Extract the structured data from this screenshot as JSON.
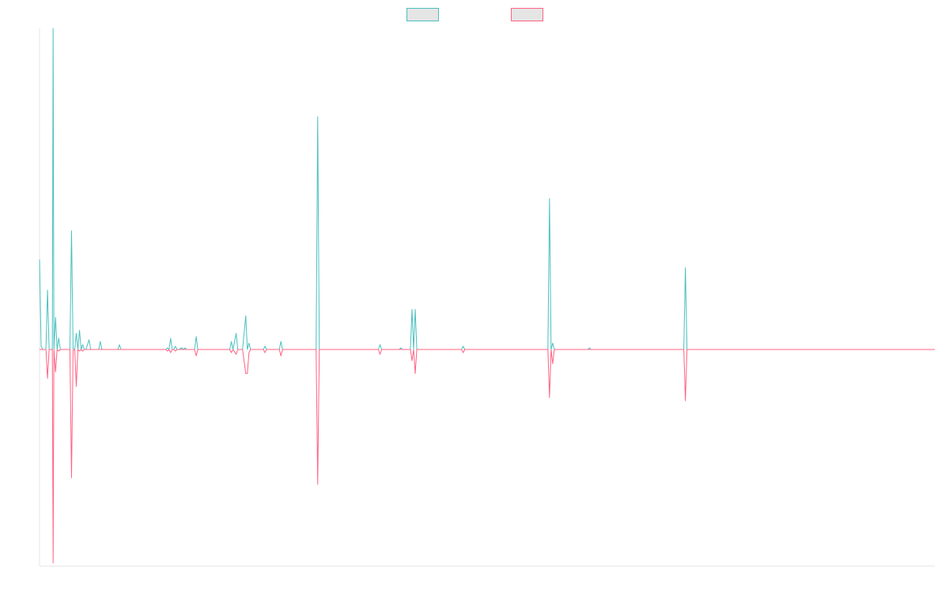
{
  "chart_data": {
    "type": "line",
    "title": "",
    "xlabel": "",
    "ylabel": "",
    "grid": false,
    "legend_position": "top-center",
    "x_range": [
      0,
      560
    ],
    "y_range": [
      -135,
      200
    ],
    "baseline": 0,
    "series": [
      {
        "name": "",
        "color": "#4bc0c0",
        "fill": "#e5e5e5",
        "points": [
          [
            0,
            56
          ],
          [
            1,
            2
          ],
          [
            2,
            0
          ],
          [
            3,
            0
          ],
          [
            4,
            0
          ],
          [
            5,
            37
          ],
          [
            6,
            0
          ],
          [
            7,
            0
          ],
          [
            8,
            0
          ],
          [
            8.5,
            200
          ],
          [
            9,
            0
          ],
          [
            10,
            20
          ],
          [
            11,
            0
          ],
          [
            12,
            7
          ],
          [
            13,
            0
          ],
          [
            14,
            0
          ],
          [
            15,
            0
          ],
          [
            19,
            0
          ],
          [
            20,
            74
          ],
          [
            21,
            0
          ],
          [
            22,
            0
          ],
          [
            23,
            10
          ],
          [
            24,
            0
          ],
          [
            25,
            12
          ],
          [
            26,
            0
          ],
          [
            27,
            3
          ],
          [
            28,
            0
          ],
          [
            29,
            0
          ],
          [
            31,
            6
          ],
          [
            32,
            0
          ],
          [
            33,
            0
          ],
          [
            37,
            0
          ],
          [
            38,
            5
          ],
          [
            39,
            0
          ],
          [
            44,
            0
          ],
          [
            45,
            0
          ],
          [
            49,
            0
          ],
          [
            50,
            3
          ],
          [
            51,
            0
          ],
          [
            62,
            0
          ],
          [
            63,
            0
          ],
          [
            79,
            0
          ],
          [
            80,
            1
          ],
          [
            81,
            0
          ],
          [
            82,
            7
          ],
          [
            83,
            0
          ],
          [
            84,
            0
          ],
          [
            85,
            2
          ],
          [
            86,
            0
          ],
          [
            87,
            0
          ],
          [
            89,
            1
          ],
          [
            90,
            0
          ],
          [
            91,
            1
          ],
          [
            92,
            0
          ],
          [
            97,
            0
          ],
          [
            98,
            8
          ],
          [
            99,
            0
          ],
          [
            106,
            0
          ],
          [
            107,
            0
          ],
          [
            119,
            0
          ],
          [
            120,
            5
          ],
          [
            121,
            0
          ],
          [
            123,
            10
          ],
          [
            124,
            0
          ],
          [
            127,
            0
          ],
          [
            129,
            21
          ],
          [
            130,
            0
          ],
          [
            131,
            4
          ],
          [
            132,
            0
          ],
          [
            140,
            0
          ],
          [
            141,
            2
          ],
          [
            142,
            0
          ],
          [
            150,
            0
          ],
          [
            151,
            5
          ],
          [
            152,
            0
          ],
          [
            173,
            0
          ],
          [
            174,
            145
          ],
          [
            175,
            0
          ],
          [
            212,
            0
          ],
          [
            213,
            3
          ],
          [
            214,
            0
          ],
          [
            225,
            0
          ],
          [
            226,
            1
          ],
          [
            227,
            0
          ],
          [
            232,
            0
          ],
          [
            233,
            25
          ],
          [
            234,
            0
          ],
          [
            235,
            25
          ],
          [
            236,
            0
          ],
          [
            237,
            0
          ],
          [
            264,
            0
          ],
          [
            265,
            2
          ],
          [
            266,
            0
          ],
          [
            318,
            0
          ],
          [
            319,
            94
          ],
          [
            320,
            0
          ],
          [
            321,
            4
          ],
          [
            322,
            0
          ],
          [
            343,
            0
          ],
          [
            344,
            1
          ],
          [
            345,
            0
          ],
          [
            403,
            0
          ],
          [
            404,
            51
          ],
          [
            405,
            0
          ],
          [
            560,
            0
          ]
        ]
      },
      {
        "name": "",
        "color": "#ff6384",
        "fill": "#e5e5e5",
        "points": [
          [
            0,
            0
          ],
          [
            1,
            0
          ],
          [
            2,
            0
          ],
          [
            3,
            0
          ],
          [
            4,
            0
          ],
          [
            5,
            -18
          ],
          [
            6,
            0
          ],
          [
            7,
            0
          ],
          [
            8,
            0
          ],
          [
            8.5,
            -133
          ],
          [
            9,
            0
          ],
          [
            10,
            -14
          ],
          [
            11,
            0
          ],
          [
            12,
            -1
          ],
          [
            13,
            0
          ],
          [
            14,
            0
          ],
          [
            15,
            0
          ],
          [
            19,
            0
          ],
          [
            20,
            -80
          ],
          [
            21,
            0
          ],
          [
            22,
            0
          ],
          [
            23,
            -23
          ],
          [
            24,
            0
          ],
          [
            25,
            -1
          ],
          [
            26,
            0
          ],
          [
            27,
            -1
          ],
          [
            28,
            0
          ],
          [
            29,
            0
          ],
          [
            31,
            0
          ],
          [
            32,
            0
          ],
          [
            33,
            0
          ],
          [
            37,
            0
          ],
          [
            38,
            0
          ],
          [
            39,
            0
          ],
          [
            44,
            0
          ],
          [
            45,
            0
          ],
          [
            49,
            0
          ],
          [
            50,
            0
          ],
          [
            51,
            0
          ],
          [
            62,
            0
          ],
          [
            63,
            0
          ],
          [
            79,
            0
          ],
          [
            80,
            -1
          ],
          [
            81,
            0
          ],
          [
            82,
            -2
          ],
          [
            83,
            0
          ],
          [
            84,
            0
          ],
          [
            85,
            -1
          ],
          [
            86,
            0
          ],
          [
            87,
            0
          ],
          [
            89,
            0
          ],
          [
            90,
            0
          ],
          [
            91,
            0
          ],
          [
            92,
            0
          ],
          [
            97,
            0
          ],
          [
            98,
            -4
          ],
          [
            99,
            0
          ],
          [
            106,
            0
          ],
          [
            107,
            0
          ],
          [
            119,
            0
          ],
          [
            120,
            -2
          ],
          [
            121,
            0
          ],
          [
            123,
            -3
          ],
          [
            124,
            0
          ],
          [
            127,
            0
          ],
          [
            129,
            -15
          ],
          [
            130,
            -15
          ],
          [
            131,
            -2
          ],
          [
            132,
            0
          ],
          [
            140,
            0
          ],
          [
            141,
            -2
          ],
          [
            142,
            0
          ],
          [
            150,
            0
          ],
          [
            151,
            -4
          ],
          [
            152,
            0
          ],
          [
            173,
            0
          ],
          [
            174,
            -84
          ],
          [
            175,
            0
          ],
          [
            212,
            0
          ],
          [
            213,
            -3
          ],
          [
            214,
            0
          ],
          [
            225,
            0
          ],
          [
            226,
            0
          ],
          [
            227,
            0
          ],
          [
            232,
            0
          ],
          [
            233,
            -7
          ],
          [
            234,
            0
          ],
          [
            235,
            -15
          ],
          [
            236,
            0
          ],
          [
            237,
            0
          ],
          [
            264,
            0
          ],
          [
            265,
            -2
          ],
          [
            266,
            0
          ],
          [
            318,
            0
          ],
          [
            319,
            -30
          ],
          [
            320,
            0
          ],
          [
            321,
            -9
          ],
          [
            322,
            0
          ],
          [
            343,
            0
          ],
          [
            344,
            0
          ],
          [
            345,
            0
          ],
          [
            403,
            0
          ],
          [
            404,
            -32
          ],
          [
            405,
            0
          ],
          [
            560,
            0
          ]
        ]
      }
    ]
  }
}
